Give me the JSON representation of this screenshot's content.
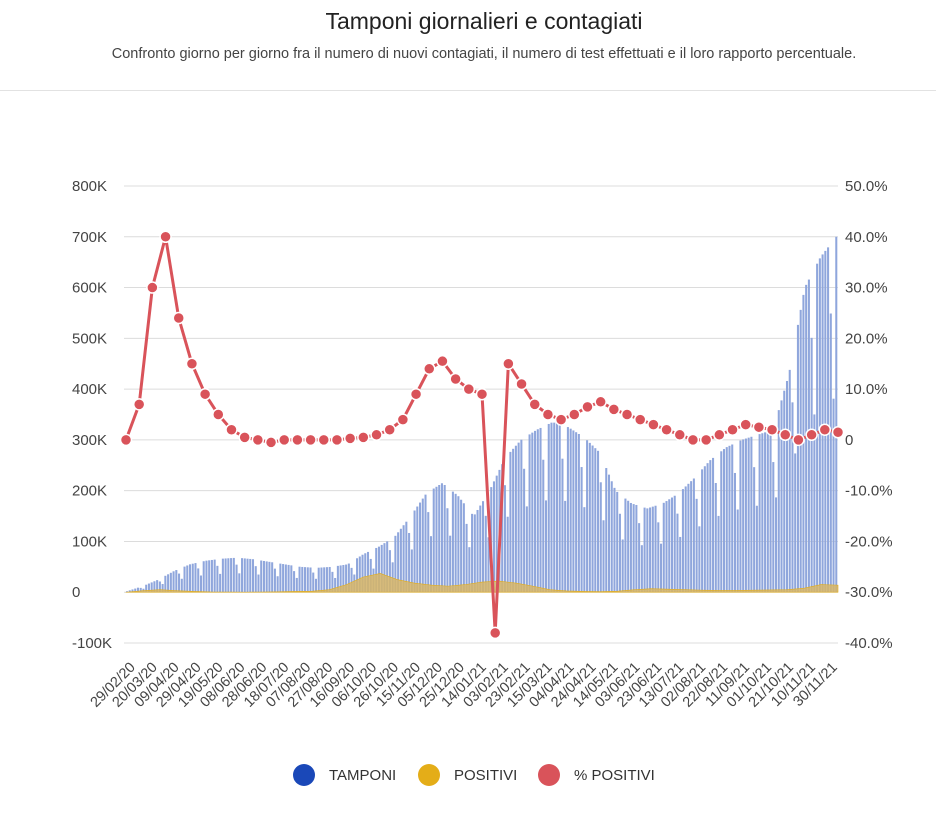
{
  "header": {
    "title": "Tamponi giornalieri e contagiati",
    "subtitle": "Confronto giorno per giorno fra il numero di nuovi contagiati, il numero di test effettuati e il loro rapporto percentuale."
  },
  "colors": {
    "tamponi": "#1a48b8",
    "tamponi_bar": "#8fa6dc",
    "positivi": "#e4ad18",
    "positivi_area": "#d7b566",
    "pct": "#d9535a",
    "grid": "#dcdcdc"
  },
  "legend": [
    {
      "label": "TAMPONI",
      "color": "#1a48b8",
      "icon": "circle-icon"
    },
    {
      "label": "POSITIVI",
      "color": "#e4ad18",
      "icon": "circle-icon"
    },
    {
      "label": "% POSITIVI",
      "color": "#d9535a",
      "icon": "circle-icon"
    }
  ],
  "chart_data": {
    "type": "bar",
    "legend_position": "bottom",
    "grid": true,
    "x_tick_labels": [
      "29/02/20",
      "20/03/20",
      "09/04/20",
      "29/04/20",
      "19/05/20",
      "08/06/20",
      "28/06/20",
      "18/07/20",
      "07/08/20",
      "27/08/20",
      "16/09/20",
      "06/10/20",
      "26/10/20",
      "15/11/20",
      "05/12/20",
      "25/12/20",
      "14/01/21",
      "03/02/21",
      "23/02/21",
      "15/03/21",
      "04/04/21",
      "24/04/21",
      "14/05/21",
      "03/06/21",
      "23/06/21",
      "13/07/21",
      "02/08/21",
      "22/08/21",
      "11/09/21",
      "01/10/21",
      "21/10/21",
      "10/11/21",
      "30/11/21"
    ],
    "y_left": {
      "range": [
        -100000,
        800000
      ],
      "ticks": [
        -100000,
        0,
        100000,
        200000,
        300000,
        400000,
        500000,
        600000,
        700000,
        800000
      ],
      "tick_labels": [
        "-100K",
        "0",
        "100K",
        "200K",
        "300K",
        "400K",
        "500K",
        "600K",
        "700K",
        "800K"
      ]
    },
    "y_right": {
      "range": [
        -40,
        50
      ],
      "ticks": [
        -40,
        -30,
        -20,
        -10,
        0,
        10,
        20,
        30,
        40,
        50
      ],
      "tick_labels": [
        "-40.0%",
        "-30.0%",
        "-20.0%",
        "-10.0%",
        "0",
        "10.0%",
        "20.0%",
        "30.0%",
        "40.0%",
        "50.0%"
      ]
    },
    "series": [
      {
        "name": "TAMPONI",
        "type": "bar",
        "axis": "left",
        "values": [
          2000,
          12000,
          25000,
          42000,
          55000,
          62000,
          66000,
          68000,
          65000,
          60000,
          55000,
          50000,
          48000,
          50000,
          55000,
          75000,
          90000,
          110000,
          150000,
          195000,
          215000,
          190000,
          150000,
          200000,
          265000,
          300000,
          320000,
          335000,
          325000,
          305000,
          275000,
          200000,
          175000,
          165000,
          175000,
          195000,
          225000,
          260000,
          285000,
          300000,
          310000,
          320000,
          430000,
          600000,
          660000,
          700000
        ]
      },
      {
        "name": "POSITIVI",
        "type": "area",
        "axis": "left",
        "values": [
          0,
          3000,
          5000,
          3000,
          1500,
          500,
          300,
          200,
          300,
          800,
          1500,
          2000,
          5000,
          15000,
          30000,
          37000,
          25000,
          18000,
          14000,
          12000,
          15000,
          20000,
          22000,
          18000,
          12000,
          5000,
          2500,
          1500,
          1000,
          2000,
          5000,
          7000,
          6000,
          5000,
          4000,
          3500,
          3500,
          4000,
          4500,
          5000,
          8000,
          15000,
          14000
        ]
      },
      {
        "name": "% POSITIVI",
        "type": "line",
        "axis": "right",
        "values": [
          0,
          7,
          30,
          40,
          24,
          15,
          9,
          5,
          2,
          0.5,
          0,
          -0.5,
          0,
          0,
          0,
          0,
          0,
          0.3,
          0.5,
          1,
          2,
          4,
          9,
          14,
          15.5,
          12,
          10,
          9,
          -38,
          15,
          11,
          7,
          5,
          4,
          5,
          6.5,
          7.5,
          6,
          5,
          4,
          3,
          2,
          1,
          0,
          0,
          1,
          2,
          3,
          2.5,
          2,
          1,
          0,
          1,
          2,
          1.5
        ]
      }
    ]
  }
}
